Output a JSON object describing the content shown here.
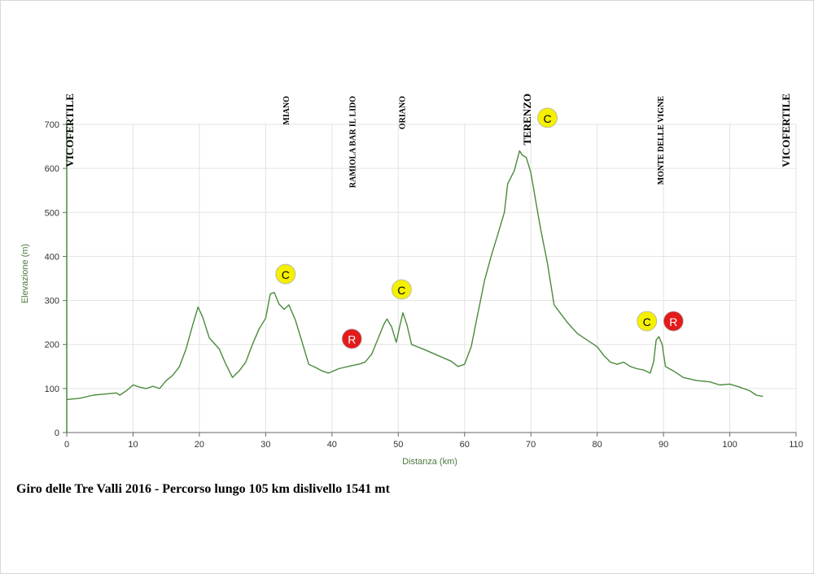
{
  "chart_data": {
    "type": "line",
    "title": "",
    "xlabel": "Distanza (km)",
    "ylabel": "Elevazione (m)",
    "xlim": [
      0,
      110
    ],
    "ylim": [
      0,
      700
    ],
    "x_ticks": [
      0,
      10,
      20,
      30,
      40,
      50,
      60,
      70,
      80,
      90,
      100,
      110
    ],
    "y_ticks": [
      0,
      100,
      200,
      300,
      400,
      500,
      600,
      700
    ],
    "grid": true,
    "series": [
      {
        "name": "",
        "color": "#4a8a3c",
        "points": [
          [
            0,
            75
          ],
          [
            2,
            78
          ],
          [
            4,
            85
          ],
          [
            6,
            88
          ],
          [
            7.5,
            90
          ],
          [
            8,
            85
          ],
          [
            9,
            95
          ],
          [
            10,
            108
          ],
          [
            11,
            103
          ],
          [
            12,
            100
          ],
          [
            13,
            105
          ],
          [
            14,
            100
          ],
          [
            15,
            118
          ],
          [
            16,
            130
          ],
          [
            17,
            150
          ],
          [
            18,
            190
          ],
          [
            19,
            245
          ],
          [
            19.8,
            285
          ],
          [
            20.5,
            262
          ],
          [
            21.5,
            215
          ],
          [
            23,
            190
          ],
          [
            24,
            155
          ],
          [
            25,
            125
          ],
          [
            26,
            140
          ],
          [
            27,
            160
          ],
          [
            28,
            200
          ],
          [
            29,
            235
          ],
          [
            30,
            260
          ],
          [
            30.7,
            315
          ],
          [
            31.3,
            318
          ],
          [
            32,
            292
          ],
          [
            32.8,
            280
          ],
          [
            33.5,
            290
          ],
          [
            34.5,
            255
          ],
          [
            35.5,
            205
          ],
          [
            36.5,
            155
          ],
          [
            37.5,
            148
          ],
          [
            38.5,
            140
          ],
          [
            39.5,
            135
          ],
          [
            41,
            145
          ],
          [
            43,
            152
          ],
          [
            44,
            155
          ],
          [
            45,
            160
          ],
          [
            46,
            178
          ],
          [
            47,
            215
          ],
          [
            47.8,
            245
          ],
          [
            48.3,
            258
          ],
          [
            49,
            240
          ],
          [
            49.7,
            205
          ],
          [
            50.2,
            240
          ],
          [
            50.7,
            272
          ],
          [
            51.3,
            245
          ],
          [
            52,
            200
          ],
          [
            54,
            188
          ],
          [
            56,
            175
          ],
          [
            58,
            162
          ],
          [
            59,
            150
          ],
          [
            60,
            155
          ],
          [
            61,
            195
          ],
          [
            62,
            270
          ],
          [
            63,
            345
          ],
          [
            64,
            400
          ],
          [
            65,
            450
          ],
          [
            66,
            500
          ],
          [
            66.5,
            565
          ],
          [
            67.5,
            595
          ],
          [
            68.3,
            640
          ],
          [
            68.7,
            630
          ],
          [
            69.3,
            625
          ],
          [
            70,
            590
          ],
          [
            70.8,
            520
          ],
          [
            71.5,
            460
          ],
          [
            72.5,
            385
          ],
          [
            73.5,
            290
          ],
          [
            74.5,
            270
          ],
          [
            75.5,
            250
          ],
          [
            77,
            225
          ],
          [
            78.5,
            210
          ],
          [
            80,
            195
          ],
          [
            81,
            175
          ],
          [
            82,
            160
          ],
          [
            83,
            155
          ],
          [
            84,
            160
          ],
          [
            85,
            150
          ],
          [
            86,
            145
          ],
          [
            87,
            142
          ],
          [
            88,
            135
          ],
          [
            88.5,
            160
          ],
          [
            88.9,
            210
          ],
          [
            89.3,
            218
          ],
          [
            89.8,
            200
          ],
          [
            90.3,
            150
          ],
          [
            91.5,
            140
          ],
          [
            93,
            125
          ],
          [
            95,
            118
          ],
          [
            97,
            115
          ],
          [
            98.5,
            108
          ],
          [
            100,
            110
          ],
          [
            101.5,
            103
          ],
          [
            103,
            95
          ],
          [
            104,
            85
          ],
          [
            105,
            82
          ]
        ]
      }
    ],
    "locations": [
      {
        "name": "VICOFERTILE",
        "km": 0.5
      },
      {
        "name": "MIANO",
        "km": 33
      },
      {
        "name": "RAMIOLA BAR IL LIDO",
        "km": 43
      },
      {
        "name": "ORIANO",
        "km": 50.5
      },
      {
        "name": "TERENZO",
        "km": 69.5
      },
      {
        "name": "MONTE DELLE VIGNE",
        "km": 89.5
      },
      {
        "name": "VICOFERTILE",
        "km": 108.5
      }
    ],
    "markers": [
      {
        "label": "C",
        "km": 33,
        "elev": 360,
        "color": "#f5f000"
      },
      {
        "label": "C",
        "km": 50.5,
        "elev": 325,
        "color": "#f5f000"
      },
      {
        "label": "C",
        "km": 72.5,
        "elev": 715,
        "color": "#f5f000"
      },
      {
        "label": "C",
        "km": 87.5,
        "elev": 253,
        "color": "#f5f000"
      },
      {
        "label": "R",
        "km": 43,
        "elev": 213,
        "color": "#e31b1b"
      },
      {
        "label": "R",
        "km": 91.5,
        "elev": 253,
        "color": "#e31b1b"
      }
    ],
    "caption": "Giro delle Tre Valli 2016 - Percorso lungo 105 km dislivello 1541 mt"
  }
}
